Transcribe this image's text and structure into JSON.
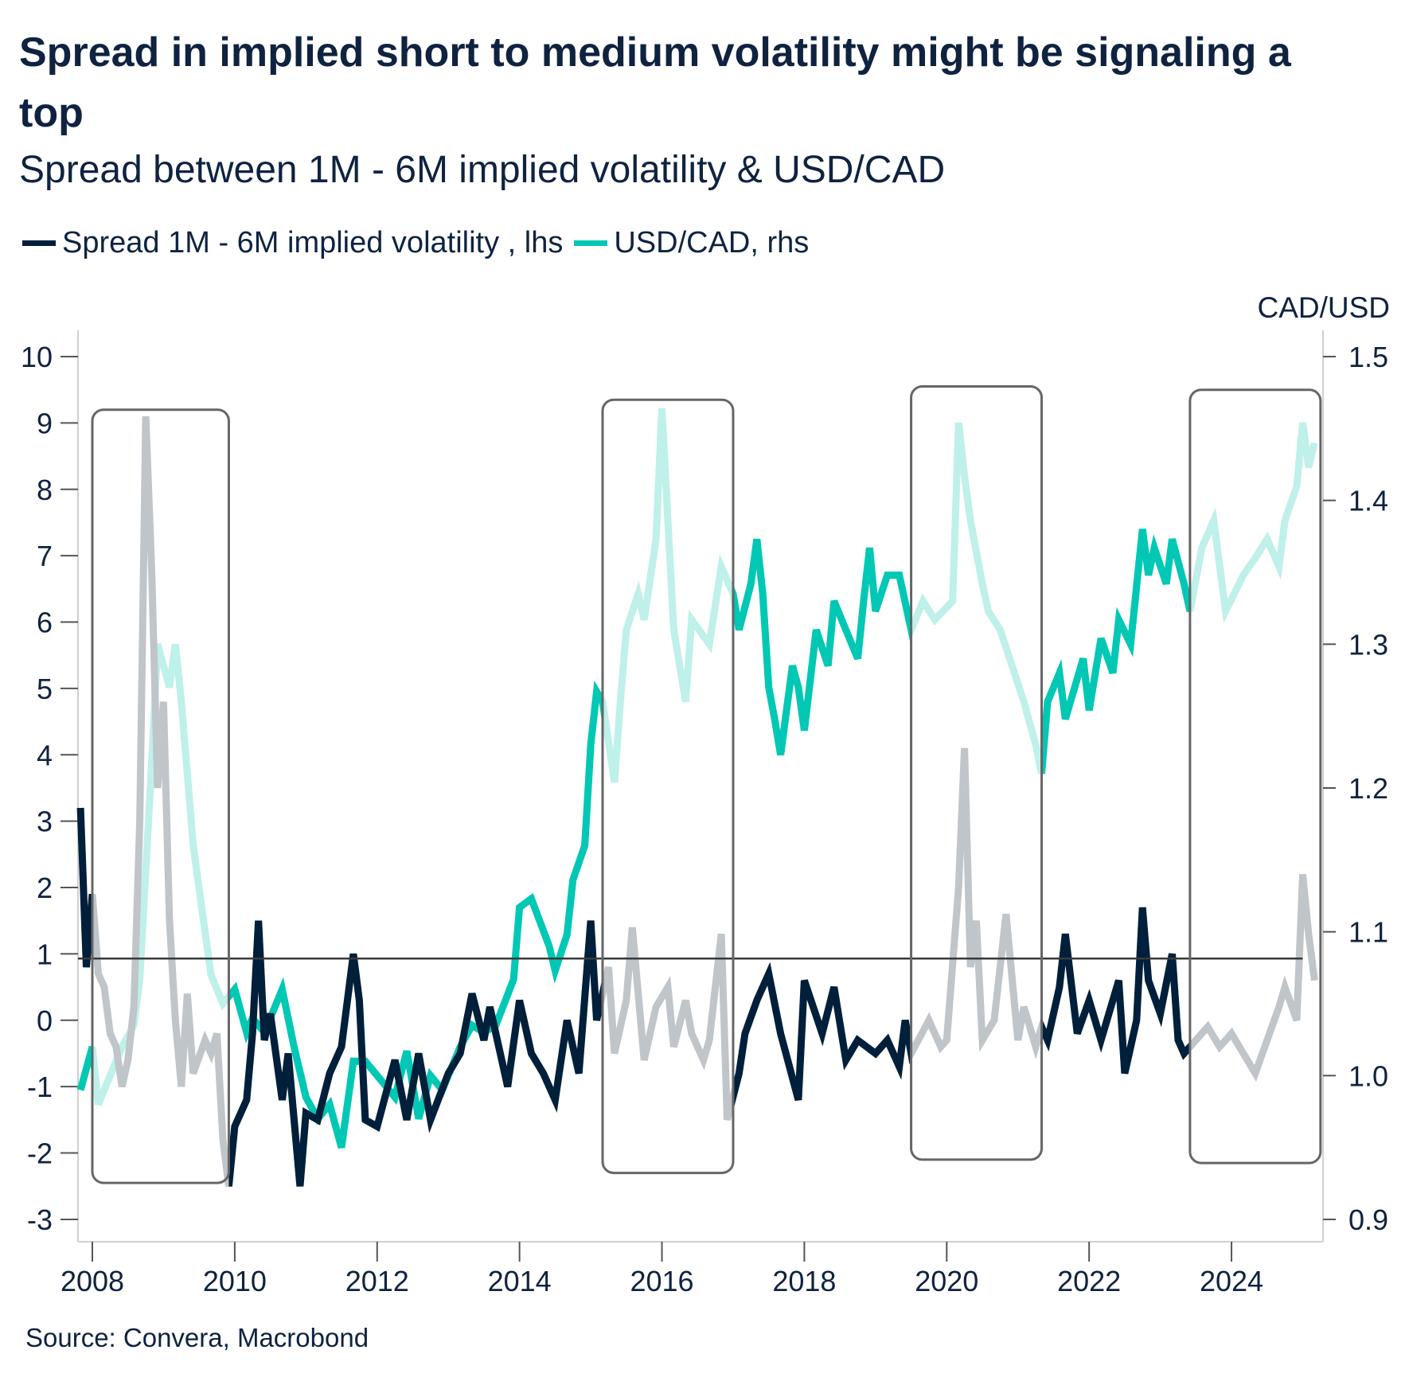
{
  "title": "Spread in implied short to medium volatility might be signaling a top",
  "subtitle": "Spread between 1M - 6M implied volatility & USD/CAD",
  "source": "Source: Convera, Macrobond",
  "colors": {
    "spread": "#001f3a",
    "spread_faded": "#c0c5ca",
    "usdcad": "#00c8b4",
    "usdcad_faded": "#bff0ea",
    "reference_line": "#3a3a3a",
    "highlight_box": "#666666",
    "text": "#0f2340"
  },
  "chart_data": {
    "type": "line",
    "title": "Spread in implied short to medium volatility might be signaling a top",
    "subtitle": "Spread between 1M - 6M implied volatility & USD/CAD",
    "legend_position": "top-left",
    "grid": false,
    "x_axis": {
      "type": "date",
      "ticks": [
        "2008",
        "2010",
        "2012",
        "2014",
        "2016",
        "2018",
        "2020",
        "2022",
        "2024"
      ],
      "range": [
        "2007-11",
        "2025-04"
      ]
    },
    "y_left": {
      "label": "",
      "range": [
        -3,
        10
      ],
      "ticks": [
        "10",
        "9",
        "8",
        "7",
        "6",
        "5",
        "4",
        "3",
        "2",
        "1",
        "0",
        "-1",
        "-2",
        "-3"
      ]
    },
    "y_right": {
      "label": "CAD/USD",
      "range": [
        0.9,
        1.5
      ],
      "ticks": [
        "1.5",
        "1.4",
        "1.3",
        "1.2",
        "1.1",
        "1.0",
        "0.9"
      ]
    },
    "reference_line": {
      "axis": "left",
      "value": 0.93
    },
    "highlight_windows": [
      {
        "start": "2008-01",
        "end": "2009-12",
        "top": 9.2,
        "bottom": -2.45
      },
      {
        "start": "2015-03",
        "end": "2017-01",
        "top": 9.35,
        "bottom": -2.3
      },
      {
        "start": "2019-07",
        "end": "2021-05",
        "top": 9.55,
        "bottom": -2.1
      },
      {
        "start": "2023-06",
        "end": "2025-04",
        "top": 9.5,
        "bottom": -2.15
      }
    ],
    "series": [
      {
        "name": "Spread 1M - 6M implied volatility , lhs",
        "axis": "left",
        "points": [
          [
            "2007-11",
            3.2
          ],
          [
            "2007-12",
            0.8
          ],
          [
            "2008-01",
            1.9
          ],
          [
            "2008-02",
            0.7
          ],
          [
            "2008-03",
            0.5
          ],
          [
            "2008-04",
            -0.2
          ],
          [
            "2008-05",
            -0.4
          ],
          [
            "2008-06",
            -1.0
          ],
          [
            "2008-07",
            -0.6
          ],
          [
            "2008-08",
            0.2
          ],
          [
            "2008-09",
            3.0
          ],
          [
            "2008-10",
            9.1
          ],
          [
            "2008-11",
            6.8
          ],
          [
            "2008-12",
            3.5
          ],
          [
            "2009-01",
            4.8
          ],
          [
            "2009-02",
            1.5
          ],
          [
            "2009-03",
            0.0
          ],
          [
            "2009-04",
            -1.0
          ],
          [
            "2009-05",
            0.4
          ],
          [
            "2009-06",
            -0.8
          ],
          [
            "2009-08",
            -0.3
          ],
          [
            "2009-09",
            -0.5
          ],
          [
            "2009-10",
            -0.2
          ],
          [
            "2009-11",
            -1.8
          ],
          [
            "2009-12",
            -2.5
          ],
          [
            "2010-01",
            -1.6
          ],
          [
            "2010-03",
            -1.2
          ],
          [
            "2010-04",
            -0.2
          ],
          [
            "2010-05",
            1.5
          ],
          [
            "2010-06",
            -0.3
          ],
          [
            "2010-07",
            0.1
          ],
          [
            "2010-09",
            -1.2
          ],
          [
            "2010-10",
            -0.5
          ],
          [
            "2010-12",
            -2.5
          ],
          [
            "2011-01",
            -1.4
          ],
          [
            "2011-03",
            -1.5
          ],
          [
            "2011-05",
            -0.8
          ],
          [
            "2011-07",
            -0.4
          ],
          [
            "2011-09",
            1.0
          ],
          [
            "2011-10",
            0.3
          ],
          [
            "2011-11",
            -1.5
          ],
          [
            "2012-01",
            -1.6
          ],
          [
            "2012-04",
            -0.6
          ],
          [
            "2012-06",
            -1.5
          ],
          [
            "2012-08",
            -0.5
          ],
          [
            "2012-10",
            -1.5
          ],
          [
            "2013-01",
            -0.8
          ],
          [
            "2013-03",
            -0.5
          ],
          [
            "2013-05",
            0.4
          ],
          [
            "2013-07",
            -0.3
          ],
          [
            "2013-08",
            0.2
          ],
          [
            "2013-10",
            -0.6
          ],
          [
            "2013-11",
            -1.0
          ],
          [
            "2014-01",
            0.3
          ],
          [
            "2014-03",
            -0.5
          ],
          [
            "2014-05",
            -0.8
          ],
          [
            "2014-07",
            -1.2
          ],
          [
            "2014-09",
            0.0
          ],
          [
            "2014-11",
            -0.8
          ],
          [
            "2015-01",
            1.5
          ],
          [
            "2015-02",
            0.0
          ],
          [
            "2015-04",
            0.8
          ],
          [
            "2015-05",
            -0.5
          ],
          [
            "2015-07",
            0.3
          ],
          [
            "2015-08",
            1.4
          ],
          [
            "2015-10",
            -0.6
          ],
          [
            "2015-12",
            0.2
          ],
          [
            "2016-02",
            0.5
          ],
          [
            "2016-03",
            -0.4
          ],
          [
            "2016-05",
            0.3
          ],
          [
            "2016-06",
            -0.2
          ],
          [
            "2016-08",
            -0.6
          ],
          [
            "2016-09",
            -0.3
          ],
          [
            "2016-11",
            1.3
          ],
          [
            "2016-12",
            -1.5
          ],
          [
            "2017-02",
            -0.8
          ],
          [
            "2017-03",
            -0.2
          ],
          [
            "2017-05",
            0.3
          ],
          [
            "2017-07",
            0.7
          ],
          [
            "2017-09",
            -0.2
          ],
          [
            "2017-12",
            -1.2
          ],
          [
            "2018-01",
            0.6
          ],
          [
            "2018-04",
            -0.2
          ],
          [
            "2018-06",
            0.5
          ],
          [
            "2018-08",
            -0.6
          ],
          [
            "2018-10",
            -0.3
          ],
          [
            "2019-01",
            -0.5
          ],
          [
            "2019-03",
            -0.3
          ],
          [
            "2019-05",
            -0.7
          ],
          [
            "2019-06",
            0.0
          ],
          [
            "2019-07",
            -0.5
          ],
          [
            "2019-10",
            0.0
          ],
          [
            "2019-12",
            -0.4
          ],
          [
            "2020-01",
            -0.3
          ],
          [
            "2020-03",
            2.0
          ],
          [
            "2020-04",
            4.1
          ],
          [
            "2020-05",
            0.8
          ],
          [
            "2020-06",
            1.5
          ],
          [
            "2020-07",
            -0.3
          ],
          [
            "2020-09",
            0.0
          ],
          [
            "2020-11",
            1.6
          ],
          [
            "2021-01",
            -0.3
          ],
          [
            "2021-02",
            0.2
          ],
          [
            "2021-04",
            -0.4
          ],
          [
            "2021-05",
            -0.1
          ],
          [
            "2021-06",
            -0.3
          ],
          [
            "2021-08",
            0.5
          ],
          [
            "2021-09",
            1.3
          ],
          [
            "2021-11",
            -0.2
          ],
          [
            "2022-01",
            0.3
          ],
          [
            "2022-03",
            -0.3
          ],
          [
            "2022-06",
            0.6
          ],
          [
            "2022-07",
            -0.8
          ],
          [
            "2022-09",
            0.0
          ],
          [
            "2022-10",
            1.7
          ],
          [
            "2022-11",
            0.6
          ],
          [
            "2023-01",
            0.1
          ],
          [
            "2023-03",
            1.0
          ],
          [
            "2023-04",
            -0.3
          ],
          [
            "2023-05",
            -0.5
          ],
          [
            "2023-07",
            -0.3
          ],
          [
            "2023-09",
            -0.1
          ],
          [
            "2023-11",
            -0.4
          ],
          [
            "2024-01",
            -0.2
          ],
          [
            "2024-03",
            -0.5
          ],
          [
            "2024-05",
            -0.8
          ],
          [
            "2024-07",
            -0.3
          ],
          [
            "2024-09",
            0.2
          ],
          [
            "2024-10",
            0.5
          ],
          [
            "2024-12",
            0.0
          ],
          [
            "2025-01",
            2.2
          ],
          [
            "2025-02",
            1.3
          ],
          [
            "2025-03",
            0.6
          ]
        ]
      },
      {
        "name": "USD/CAD, rhs",
        "axis": "right",
        "points": [
          [
            "2007-11",
            0.99
          ],
          [
            "2008-01",
            1.02
          ],
          [
            "2008-02",
            0.98
          ],
          [
            "2008-04",
            1.0
          ],
          [
            "2008-06",
            1.02
          ],
          [
            "2008-08",
            1.035
          ],
          [
            "2008-09",
            1.067
          ],
          [
            "2008-11",
            1.217
          ],
          [
            "2008-12",
            1.3
          ],
          [
            "2009-02",
            1.27
          ],
          [
            "2009-03",
            1.3
          ],
          [
            "2009-04",
            1.26
          ],
          [
            "2009-05",
            1.21
          ],
          [
            "2009-06",
            1.16
          ],
          [
            "2009-08",
            1.1
          ],
          [
            "2009-09",
            1.07
          ],
          [
            "2009-11",
            1.05
          ],
          [
            "2010-01",
            1.06
          ],
          [
            "2010-03",
            1.03
          ],
          [
            "2010-04",
            1.04
          ],
          [
            "2010-06",
            1.03
          ],
          [
            "2010-09",
            1.06
          ],
          [
            "2010-11",
            1.02
          ],
          [
            "2011-01",
            0.985
          ],
          [
            "2011-03",
            0.97
          ],
          [
            "2011-05",
            0.98
          ],
          [
            "2011-07",
            0.95
          ],
          [
            "2011-09",
            1.01
          ],
          [
            "2011-11",
            1.01
          ],
          [
            "2012-01",
            1.0
          ],
          [
            "2012-04",
            0.985
          ],
          [
            "2012-06",
            1.017
          ],
          [
            "2012-08",
            0.97
          ],
          [
            "2012-10",
            1.0
          ],
          [
            "2012-12",
            0.99
          ],
          [
            "2013-03",
            1.02
          ],
          [
            "2013-05",
            1.035
          ],
          [
            "2013-07",
            1.03
          ],
          [
            "2013-09",
            1.035
          ],
          [
            "2013-12",
            1.067
          ],
          [
            "2014-01",
            1.117
          ],
          [
            "2014-03",
            1.123
          ],
          [
            "2014-06",
            1.09
          ],
          [
            "2014-07",
            1.073
          ],
          [
            "2014-09",
            1.098
          ],
          [
            "2014-10",
            1.136
          ],
          [
            "2014-12",
            1.16
          ],
          [
            "2015-01",
            1.23
          ],
          [
            "2015-02",
            1.267
          ],
          [
            "2015-03",
            1.26
          ],
          [
            "2015-05",
            1.204
          ],
          [
            "2015-06",
            1.26
          ],
          [
            "2015-07",
            1.31
          ],
          [
            "2015-09",
            1.335
          ],
          [
            "2015-10",
            1.317
          ],
          [
            "2015-12",
            1.373
          ],
          [
            "2016-01",
            1.464
          ],
          [
            "2016-02",
            1.386
          ],
          [
            "2016-03",
            1.31
          ],
          [
            "2016-05",
            1.26
          ],
          [
            "2016-06",
            1.317
          ],
          [
            "2016-09",
            1.3
          ],
          [
            "2016-11",
            1.354
          ],
          [
            "2017-01",
            1.335
          ],
          [
            "2017-02",
            1.31
          ],
          [
            "2017-04",
            1.342
          ],
          [
            "2017-05",
            1.373
          ],
          [
            "2017-06",
            1.335
          ],
          [
            "2017-07",
            1.27
          ],
          [
            "2017-08",
            1.248
          ],
          [
            "2017-09",
            1.223
          ],
          [
            "2017-11",
            1.285
          ],
          [
            "2017-12",
            1.27
          ],
          [
            "2018-01",
            1.24
          ],
          [
            "2018-03",
            1.31
          ],
          [
            "2018-05",
            1.285
          ],
          [
            "2018-06",
            1.33
          ],
          [
            "2018-08",
            1.31
          ],
          [
            "2018-10",
            1.29
          ],
          [
            "2018-11",
            1.33
          ],
          [
            "2018-12",
            1.367
          ],
          [
            "2019-01",
            1.323
          ],
          [
            "2019-03",
            1.348
          ],
          [
            "2019-05",
            1.348
          ],
          [
            "2019-07",
            1.31
          ],
          [
            "2019-09",
            1.33
          ],
          [
            "2019-11",
            1.317
          ],
          [
            "2020-02",
            1.33
          ],
          [
            "2020-03",
            1.454
          ],
          [
            "2020-04",
            1.417
          ],
          [
            "2020-05",
            1.386
          ],
          [
            "2020-07",
            1.342
          ],
          [
            "2020-08",
            1.323
          ],
          [
            "2020-10",
            1.31
          ],
          [
            "2020-12",
            1.285
          ],
          [
            "2021-02",
            1.26
          ],
          [
            "2021-04",
            1.23
          ],
          [
            "2021-05",
            1.21
          ],
          [
            "2021-06",
            1.26
          ],
          [
            "2021-08",
            1.28
          ],
          [
            "2021-09",
            1.248
          ],
          [
            "2021-12",
            1.29
          ],
          [
            "2022-01",
            1.254
          ],
          [
            "2022-03",
            1.304
          ],
          [
            "2022-05",
            1.28
          ],
          [
            "2022-06",
            1.317
          ],
          [
            "2022-08",
            1.3
          ],
          [
            "2022-10",
            1.38
          ],
          [
            "2022-11",
            1.348
          ],
          [
            "2022-12",
            1.367
          ],
          [
            "2023-02",
            1.342
          ],
          [
            "2023-03",
            1.373
          ],
          [
            "2023-05",
            1.342
          ],
          [
            "2023-06",
            1.323
          ],
          [
            "2023-08",
            1.367
          ],
          [
            "2023-10",
            1.386
          ],
          [
            "2023-12",
            1.323
          ],
          [
            "2024-03",
            1.348
          ],
          [
            "2024-05",
            1.36
          ],
          [
            "2024-07",
            1.373
          ],
          [
            "2024-09",
            1.354
          ],
          [
            "2024-10",
            1.386
          ],
          [
            "2024-12",
            1.41
          ],
          [
            "2025-01",
            1.454
          ],
          [
            "2025-02",
            1.423
          ],
          [
            "2025-03",
            1.44
          ]
        ]
      }
    ]
  }
}
